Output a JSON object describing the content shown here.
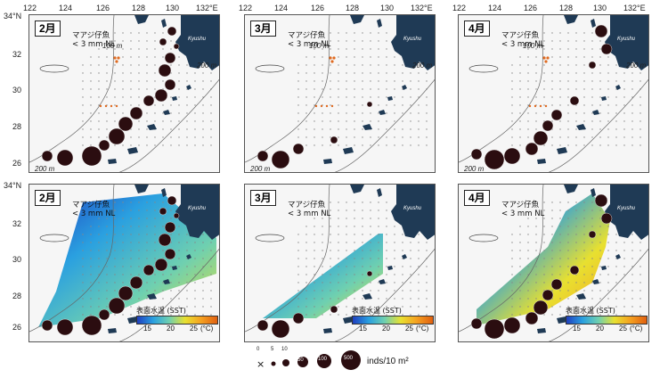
{
  "top_longitude_ticks": {
    "panel1": [
      "122",
      "124",
      "126",
      "128",
      "130",
      "132°E"
    ],
    "panel2": [
      "122",
      "124",
      "126",
      "128",
      "130",
      "132°E"
    ],
    "panel3": [
      "122",
      "124",
      "126",
      "128",
      "130",
      "132°E"
    ]
  },
  "latitude_ticks_top": [
    "34°N",
    "32",
    "30",
    "28",
    "26"
  ],
  "latitude_ticks_bottom": [
    "34°N",
    "32",
    "30",
    "28",
    "26"
  ],
  "species_label": [
    "マアジ仔魚",
    "< 3 mm NL"
  ],
  "island_label": "Kyushu",
  "depth_labels": {
    "d100": "100 m",
    "d200": "200 m"
  },
  "months": [
    "2月",
    "3月",
    "4月"
  ],
  "colorbar": {
    "title": "表面水温 (SST)",
    "ticks": [
      "15",
      "20",
      "25",
      "(°C)"
    ],
    "colors": [
      "#1f3fbf",
      "#2aa0e0",
      "#6fd0b0",
      "#e8e030",
      "#f5a020",
      "#e06010"
    ]
  },
  "legend": {
    "values": [
      "0",
      "5",
      "10",
      "50",
      "100",
      "500"
    ],
    "unit": "inds/10 m²",
    "zero_symbol": "×"
  },
  "colors": {
    "land": "#1f3a55",
    "marker": "#2b0d10",
    "survey_dot": "#888888",
    "orange_station": "#e06a20"
  }
}
